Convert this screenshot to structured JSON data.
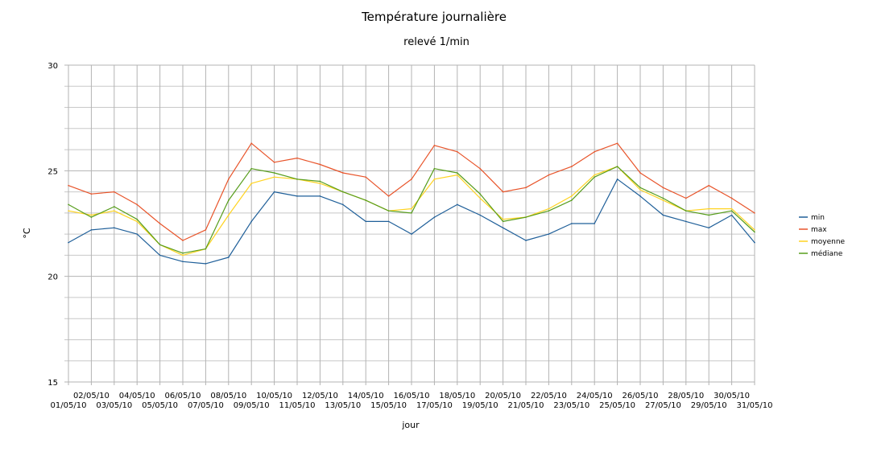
{
  "chart_data": {
    "type": "line",
    "title": "Température journalière",
    "subtitle": "relevé 1/min",
    "xlabel": "jour",
    "ylabel": "°C",
    "ylim": [
      15,
      30
    ],
    "yticks": [
      "15",
      "20",
      "25",
      "30"
    ],
    "grid": true,
    "legend_position": "right",
    "categories": [
      "01/05/10",
      "02/05/10",
      "03/05/10",
      "04/05/10",
      "05/05/10",
      "06/05/10",
      "07/05/10",
      "08/05/10",
      "09/05/10",
      "10/05/10",
      "11/05/10",
      "12/05/10",
      "13/05/10",
      "14/05/10",
      "15/05/10",
      "16/05/10",
      "17/05/10",
      "18/05/10",
      "19/05/10",
      "20/05/10",
      "21/05/10",
      "22/05/10",
      "23/05/10",
      "24/05/10",
      "25/05/10",
      "26/05/10",
      "27/05/10",
      "28/05/10",
      "29/05/10",
      "30/05/10",
      "31/05/10"
    ],
    "series": [
      {
        "name": "min",
        "color": "#1f5f99",
        "values": [
          21.6,
          22.2,
          22.3,
          22.0,
          21.0,
          20.7,
          20.6,
          20.9,
          22.6,
          24.0,
          23.8,
          23.8,
          23.4,
          22.6,
          22.6,
          22.0,
          22.8,
          23.4,
          22.9,
          22.3,
          21.7,
          22.0,
          22.5,
          22.5,
          24.6,
          23.8,
          22.9,
          22.6,
          22.3,
          22.9,
          21.6
        ]
      },
      {
        "name": "max",
        "color": "#e8542a",
        "values": [
          24.3,
          23.9,
          24.0,
          23.4,
          22.5,
          21.7,
          22.2,
          24.6,
          26.3,
          25.4,
          25.6,
          25.3,
          24.9,
          24.7,
          23.8,
          24.6,
          26.2,
          25.9,
          25.1,
          24.0,
          24.2,
          24.8,
          25.2,
          25.9,
          26.3,
          24.9,
          24.2,
          23.7,
          24.3,
          23.7,
          23.0
        ]
      },
      {
        "name": "moyenne",
        "color": "#ffd320",
        "values": [
          23.1,
          22.9,
          23.1,
          22.6,
          21.5,
          21.0,
          21.3,
          22.9,
          24.4,
          24.7,
          24.6,
          24.4,
          24.0,
          23.6,
          23.1,
          23.2,
          24.6,
          24.8,
          23.7,
          22.7,
          22.8,
          23.2,
          23.8,
          24.8,
          25.2,
          24.1,
          23.6,
          23.1,
          23.2,
          23.2,
          22.2
        ]
      },
      {
        "name": "médiane",
        "color": "#579d1c",
        "values": [
          23.4,
          22.8,
          23.3,
          22.7,
          21.5,
          21.1,
          21.3,
          23.6,
          25.1,
          24.9,
          24.6,
          24.5,
          24.0,
          23.6,
          23.1,
          23.0,
          25.1,
          24.9,
          23.9,
          22.6,
          22.8,
          23.1,
          23.6,
          24.7,
          25.2,
          24.2,
          23.7,
          23.1,
          22.9,
          23.1,
          22.1
        ]
      }
    ]
  }
}
